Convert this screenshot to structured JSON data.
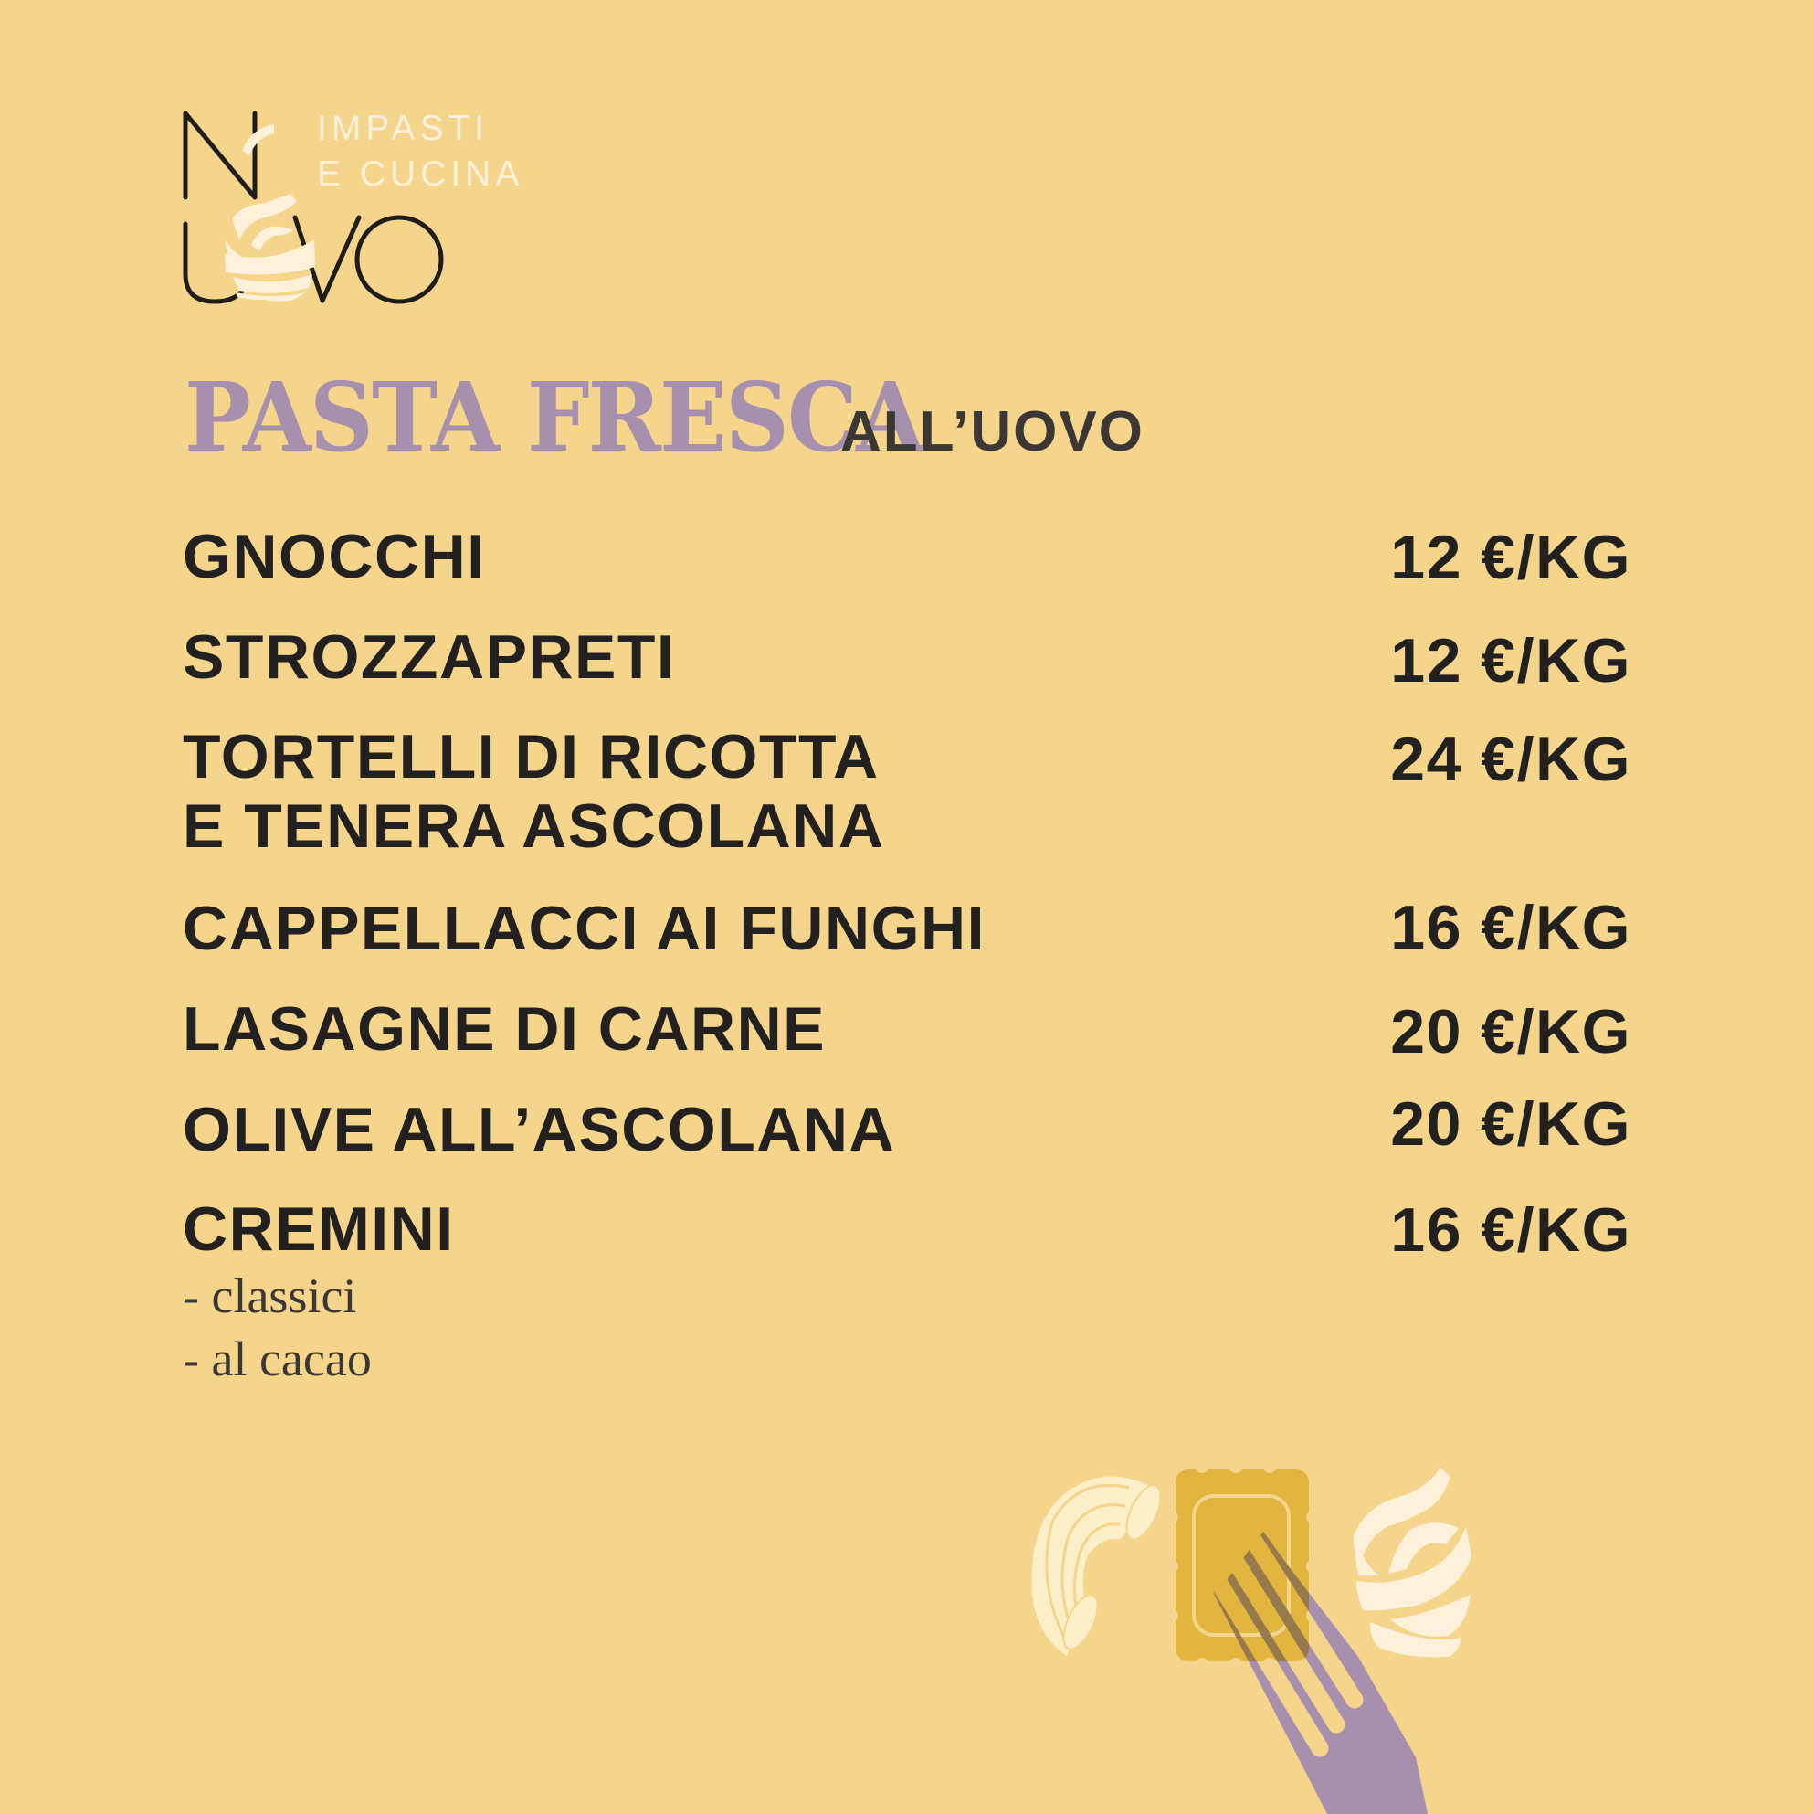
{
  "logo": {
    "letters": "NUOVO",
    "tagline_line1": "IMPASTI",
    "tagline_line2": "E CUCINA"
  },
  "heading": {
    "title": "PASTA FRESCA",
    "subtitle": "ALL’UOVO"
  },
  "menu": {
    "items": [
      {
        "name": "GNOCCHI",
        "price": "12 €/KG"
      },
      {
        "name": "STROZZAPRETI",
        "price": "12 €/KG"
      },
      {
        "name_line1": "TORTELLI DI RICOTTA",
        "name_line2": "E TENERA ASCOLANA",
        "price": "24 €/KG"
      },
      {
        "name": "CAPPELLACCI AI FUNGHI",
        "price": "16 €/KG"
      },
      {
        "name": "LASAGNE DI CARNE",
        "price": "20 €/KG"
      },
      {
        "name": "OLIVE ALL’ASCOLANA",
        "price": "20 €/KG"
      },
      {
        "name": "CREMINI",
        "price": "16 €/KG",
        "variants": [
          "- classici",
          "- al cacao"
        ]
      }
    ]
  },
  "colors": {
    "background": "#f5d48c",
    "accent_purple": "#a790ad",
    "text": "#222120",
    "cream": "#fdf1da",
    "ravioli": "#e2b53e"
  },
  "illustrations": [
    "macaroni-icon",
    "ravioli-icon",
    "fork-icon",
    "pasta-nest-icon"
  ]
}
